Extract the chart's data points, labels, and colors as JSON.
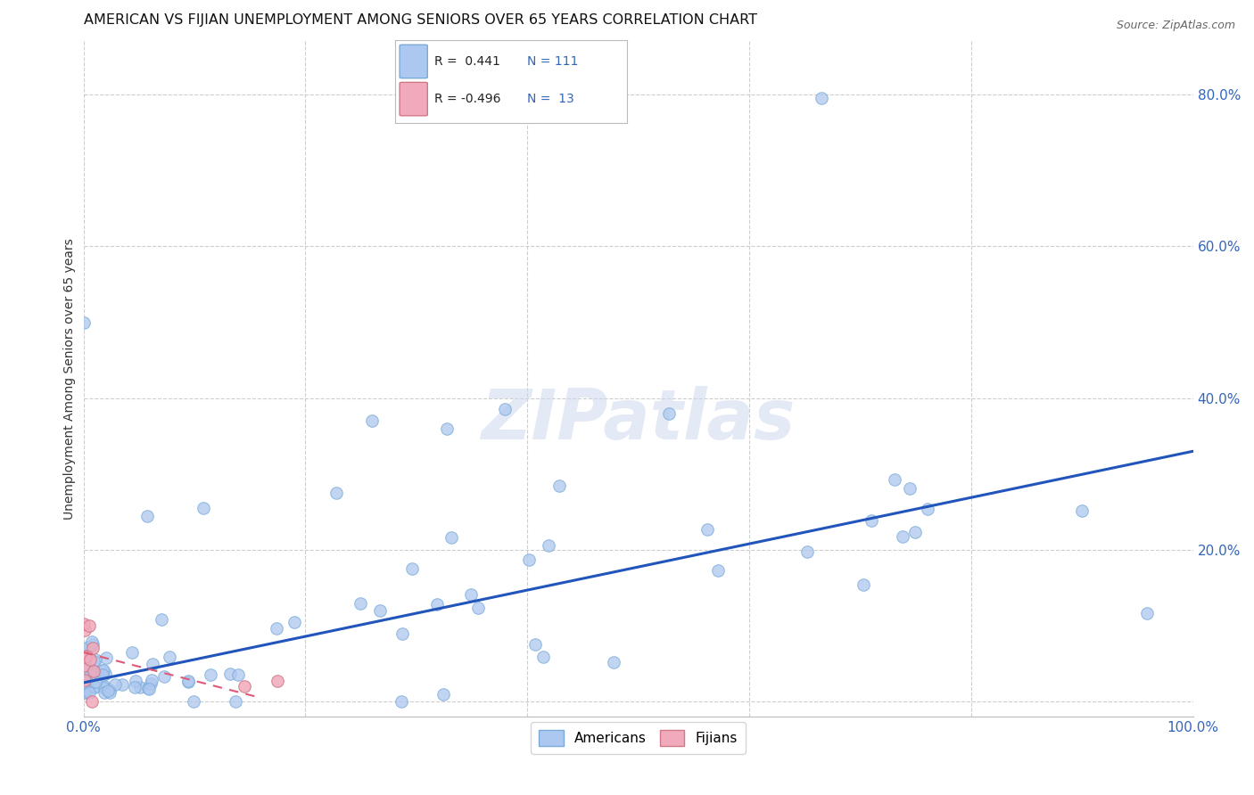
{
  "title": "AMERICAN VS FIJIAN UNEMPLOYMENT AMONG SENIORS OVER 65 YEARS CORRELATION CHART",
  "source": "Source: ZipAtlas.com",
  "ylabel": "Unemployment Among Seniors over 65 years",
  "xlim": [
    0.0,
    1.0
  ],
  "ylim": [
    -0.02,
    0.87
  ],
  "xticks": [
    0.0,
    0.2,
    0.4,
    0.6,
    0.8,
    1.0
  ],
  "xticklabels": [
    "0.0%",
    "",
    "",
    "",
    "",
    "100.0%"
  ],
  "ytick_positions": [
    0.0,
    0.2,
    0.4,
    0.6,
    0.8
  ],
  "yticklabels_right": [
    "",
    "20.0%",
    "40.0%",
    "60.0%",
    "80.0%"
  ],
  "american_color": "#adc8f0",
  "american_edge": "#7aaad8",
  "fijian_color": "#f0aabb",
  "fijian_edge": "#d07888",
  "trend_american_color": "#2255bb",
  "trend_fijian_color": "#e05878",
  "legend_R_american": "R =  0.441",
  "legend_N_american": "N = 111",
  "legend_R_fijian": "R = -0.496",
  "legend_N_fijian": "N =  13",
  "watermark": "ZIPatlas",
  "bg_color": "#ffffff",
  "grid_color": "#c8c8c8",
  "title_fontsize": 11.5,
  "axis_label_fontsize": 10,
  "tick_fontsize": 11,
  "tick_color_blue": "#3366bb",
  "tick_color_dark": "#333333",
  "marker_size": 95,
  "trend_am_x0": 0.0,
  "trend_am_y0": 0.025,
  "trend_am_x1": 1.0,
  "trend_am_y1": 0.33,
  "trend_fi_x0": 0.0,
  "trend_fi_y0": 0.065,
  "trend_fi_x1": 0.16,
  "trend_fi_y1": 0.005
}
